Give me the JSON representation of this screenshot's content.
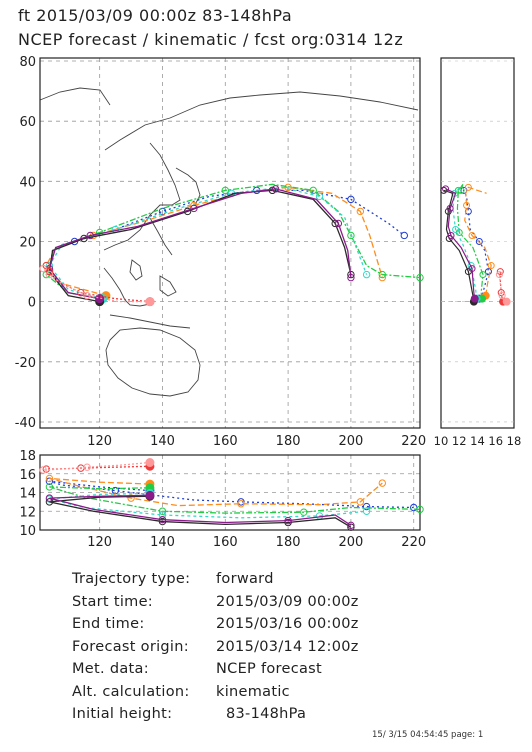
{
  "header": {
    "line1": "ft 2015/03/09 00:00z  83-148hPa",
    "line2": "NCEP forecast / kinematic / fcst org:0314 12z"
  },
  "chart_data": [
    {
      "type": "line",
      "panel": "map",
      "x_range": [
        101,
        222
      ],
      "y_range": [
        -42,
        81
      ],
      "x_ticks": [
        120,
        140,
        160,
        180,
        200,
        220
      ],
      "y_ticks": [
        -40,
        -20,
        0,
        20,
        40,
        60,
        80
      ],
      "grid": true,
      "series": [
        {
          "color": "#1f3fd6",
          "dash": "2,3",
          "points": [
            [
              120,
              1
            ],
            [
              110,
              3
            ],
            [
              104,
              10
            ],
            [
              105,
              17
            ],
            [
              112,
              20
            ],
            [
              125,
              24
            ],
            [
              140,
              30
            ],
            [
              155,
              35
            ],
            [
              170,
              37
            ],
            [
              185,
              37
            ],
            [
              200,
              34
            ],
            [
              212,
              26
            ],
            [
              217,
              22
            ]
          ]
        },
        {
          "color": "#ff8c1a",
          "dash": "6,3",
          "points": [
            [
              122,
              2
            ],
            [
              108,
              6
            ],
            [
              103,
              12
            ],
            [
              106,
              18
            ],
            [
              118,
              22
            ],
            [
              135,
              27
            ],
            [
              150,
              32
            ],
            [
              165,
              36
            ],
            [
              180,
              38
            ],
            [
              194,
              36
            ],
            [
              203,
              30
            ],
            [
              206,
              22
            ],
            [
              210,
              8
            ]
          ]
        },
        {
          "color": "#22cc44",
          "dash": "6,2,2,2",
          "points": [
            [
              120,
              1
            ],
            [
              110,
              3
            ],
            [
              103,
              9
            ],
            [
              106,
              18
            ],
            [
              120,
              23
            ],
            [
              140,
              31
            ],
            [
              160,
              37
            ],
            [
              175,
              39
            ],
            [
              188,
              37
            ],
            [
              196,
              30
            ],
            [
              200,
              22
            ],
            [
              205,
              12
            ],
            [
              210,
              9
            ],
            [
              222,
              8
            ]
          ]
        },
        {
          "color": "#33d9c8",
          "dash": "3,3",
          "points": [
            [
              121,
              1
            ],
            [
              110,
              4
            ],
            [
              104,
              12
            ],
            [
              108,
              19
            ],
            [
              125,
              24
            ],
            [
              145,
              31
            ],
            [
              162,
              36
            ],
            [
              178,
              38
            ],
            [
              190,
              35
            ],
            [
              198,
              28
            ],
            [
              205,
              9
            ]
          ]
        },
        {
          "color": "#2a2a2a",
          "dash": "",
          "points": [
            [
              120,
              0
            ],
            [
              110,
              2
            ],
            [
              104,
              10
            ],
            [
              105,
              17
            ],
            [
              115,
              21
            ],
            [
              130,
              24
            ],
            [
              148,
              30
            ],
            [
              163,
              36
            ],
            [
              175,
              37
            ],
            [
              188,
              34
            ],
            [
              195,
              26
            ],
            [
              198,
              18
            ],
            [
              200,
              9
            ]
          ]
        },
        {
          "color": "#8b1a8b",
          "dash": "",
          "points": [
            [
              120,
              1
            ],
            [
              110,
              3
            ],
            [
              104,
              11
            ],
            [
              106,
              18
            ],
            [
              117,
              22
            ],
            [
              132,
              25
            ],
            [
              150,
              31
            ],
            [
              165,
              36
            ],
            [
              176,
              37.5
            ],
            [
              189,
              34
            ],
            [
              196,
              26
            ],
            [
              199,
              17
            ],
            [
              200,
              8
            ]
          ]
        },
        {
          "color": "#ee3a3a",
          "dash": "2,2",
          "points": [
            [
              136,
              0
            ],
            [
              125,
              1
            ],
            [
              114,
              3
            ],
            [
              106,
              7
            ],
            [
              104,
              10
            ],
            [
              103,
              12
            ]
          ]
        },
        {
          "color": "#ff9999",
          "dash": "2,2",
          "points": [
            [
              136,
              0
            ],
            [
              126,
              0
            ],
            [
              116,
              2
            ],
            [
              108,
              6
            ],
            [
              104,
              9
            ],
            [
              102,
              11
            ]
          ]
        }
      ]
    },
    {
      "type": "line",
      "panel": "time-height-right",
      "x_ticks": [
        "10",
        "12",
        "14",
        "16",
        "18"
      ],
      "x_range": [
        10,
        18
      ]
    },
    {
      "type": "line",
      "panel": "longitude-height-bottom",
      "x_range": [
        101,
        222
      ],
      "y_range": [
        10,
        18
      ],
      "x_ticks": [
        120,
        140,
        160,
        180,
        200,
        220
      ],
      "y_ticks": [
        10,
        12,
        14,
        16,
        18
      ],
      "grid": true,
      "series": [
        {
          "color": "#1f3fd6",
          "dash": "2,3",
          "points": [
            [
              136,
              14.2
            ],
            [
              120,
              14.6
            ],
            [
              104,
              15.2
            ],
            [
              108,
              14.8
            ],
            [
              125,
              14.2
            ],
            [
              150,
              13.2
            ],
            [
              165,
              13
            ],
            [
              185,
              12.8
            ],
            [
              205,
              12.5
            ],
            [
              220,
              12.4
            ]
          ]
        },
        {
          "color": "#ff8c1a",
          "dash": "6,3",
          "points": [
            [
              136,
              14.9
            ],
            [
              120,
              15.1
            ],
            [
              104,
              15.5
            ],
            [
              112,
              14.8
            ],
            [
              130,
              13.4
            ],
            [
              145,
              12.6
            ],
            [
              165,
              12.8
            ],
            [
              190,
              12.7
            ],
            [
              203,
              13
            ],
            [
              210,
              15
            ]
          ]
        },
        {
          "color": "#22cc44",
          "dash": "6,2,2,2",
          "points": [
            [
              136,
              14.5
            ],
            [
              120,
              14.4
            ],
            [
              104,
              14.6
            ],
            [
              115,
              13.5
            ],
            [
              140,
              12
            ],
            [
              160,
              11.8
            ],
            [
              185,
              11.9
            ],
            [
              200,
              12.4
            ],
            [
              222,
              12.2
            ]
          ]
        },
        {
          "color": "#33d9c8",
          "dash": "3,3",
          "points": [
            [
              136,
              13.9
            ],
            [
              120,
              13.8
            ],
            [
              104,
              13.3
            ],
            [
              115,
              12.4
            ],
            [
              140,
              11.6
            ],
            [
              165,
              11.3
            ],
            [
              190,
              11.5
            ],
            [
              205,
              12
            ]
          ]
        },
        {
          "color": "#2a2a2a",
          "dash": "",
          "points": [
            [
              136,
              13.6
            ],
            [
              120,
              13.5
            ],
            [
              104,
              13
            ],
            [
              118,
              12
            ],
            [
              140,
              10.9
            ],
            [
              160,
              10.6
            ],
            [
              180,
              10.8
            ],
            [
              195,
              11.3
            ],
            [
              200,
              10.3
            ]
          ]
        },
        {
          "color": "#8b1a8b",
          "dash": "",
          "points": [
            [
              136,
              13.7
            ],
            [
              120,
              13.6
            ],
            [
              104,
              13.4
            ],
            [
              118,
              12.2
            ],
            [
              140,
              11.1
            ],
            [
              160,
              10.8
            ],
            [
              180,
              11
            ],
            [
              195,
              11.6
            ],
            [
              200,
              10.5
            ]
          ]
        },
        {
          "color": "#ee3a3a",
          "dash": "2,2",
          "points": [
            [
              136,
              16.8
            ],
            [
              125,
              16.7
            ],
            [
              114,
              16.6
            ],
            [
              106,
              16.5
            ],
            [
              103,
              16.5
            ]
          ]
        },
        {
          "color": "#ff9999",
          "dash": "2,2",
          "points": [
            [
              136,
              17.2
            ],
            [
              126,
              16.9
            ],
            [
              116,
              16.7
            ],
            [
              108,
              16.5
            ],
            [
              102,
              16.4
            ]
          ]
        }
      ]
    }
  ],
  "info": {
    "trajectory_type_label": "Trajectory type:",
    "trajectory_type": "forward",
    "start_time_label": "Start time:",
    "start_time": "2015/03/09 00:00z",
    "end_time_label": "End time:",
    "end_time": "2015/03/16 00:00z",
    "forecast_origin_label": "Forecast origin:",
    "forecast_origin": "2015/03/14 12:00z",
    "met_data_label": "Met. data:",
    "met_data": "NCEP forecast",
    "alt_calc_label": "Alt. calculation:",
    "alt_calc": "kinematic",
    "initial_height_label": "Initial height:",
    "initial_height": "83-148hPa"
  },
  "footer": "15/ 3/15 04:54:45 page: 1"
}
